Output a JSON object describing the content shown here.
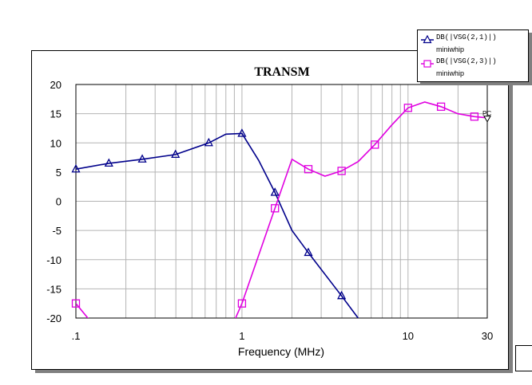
{
  "chart_data": {
    "type": "line",
    "title": "TRANSM",
    "xlabel": "Frequency (MHz)",
    "ylabel": "",
    "x_scale": "log",
    "xlim": [
      0.1,
      30
    ],
    "ylim": [
      -20,
      20
    ],
    "x_ticks": [
      {
        "value": 0.1,
        "label": ".1"
      },
      {
        "value": 1,
        "label": "1"
      },
      {
        "value": 10,
        "label": "10"
      },
      {
        "value": 30,
        "label": "30"
      }
    ],
    "y_ticks": [
      20,
      15,
      10,
      5,
      0,
      -5,
      -10,
      -15,
      -20
    ],
    "grid": true,
    "legend_position": "top-right",
    "marker_note": "PC",
    "series": [
      {
        "name": "DB(|VSG(2,1)|)",
        "source": "miniwhip",
        "color": "#00008b",
        "marker": "triangle",
        "x": [
          0.1,
          0.158,
          0.251,
          0.398,
          0.631,
          0.8,
          1.0,
          1.26,
          1.58,
          2.0,
          2.51,
          3.98,
          6.0
        ],
        "y": [
          5.5,
          6.5,
          7.2,
          8.0,
          10.0,
          11.5,
          11.6,
          7.0,
          1.5,
          -5.0,
          -8.8,
          -16.2,
          -23.0
        ],
        "marker_x": [
          0.1,
          0.158,
          0.251,
          0.398,
          0.631,
          1.0,
          1.58,
          2.51,
          3.98
        ]
      },
      {
        "name": "DB(|VSG(2,3)|)",
        "source": "miniwhip",
        "color": "#e000e0",
        "marker": "square",
        "x": [
          0.1,
          0.126,
          0.794,
          1.0,
          1.58,
          2.0,
          2.51,
          3.16,
          3.98,
          5.01,
          6.31,
          7.94,
          10.0,
          12.6,
          15.8,
          19.9,
          25.1,
          30.0
        ],
        "y": [
          -17.5,
          -21.0,
          -24.0,
          -17.5,
          -1.2,
          7.2,
          5.5,
          4.3,
          5.2,
          6.8,
          9.7,
          13.0,
          16.0,
          17.0,
          16.2,
          15.0,
          14.5,
          14.3
        ],
        "marker_x": [
          0.1,
          1.0,
          1.58,
          2.51,
          3.98,
          6.31,
          10.0,
          15.8,
          25.1
        ]
      }
    ]
  }
}
